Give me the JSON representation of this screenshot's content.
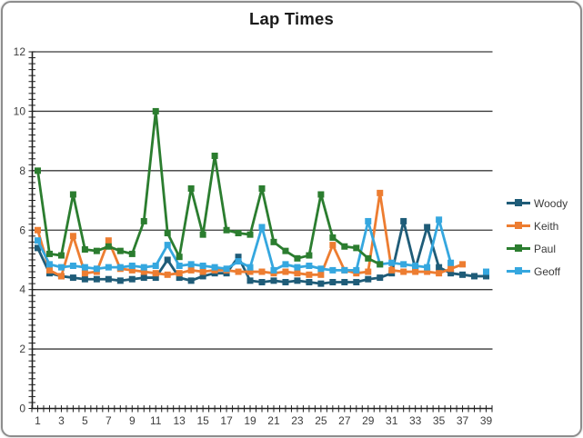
{
  "chart_data": {
    "type": "line",
    "title": "Lap Times",
    "xlabel": "",
    "ylabel": "",
    "xlim": [
      0.5,
      39.5
    ],
    "ylim": [
      0,
      12
    ],
    "y_ticks": [
      0,
      2,
      4,
      6,
      8,
      10,
      12
    ],
    "x_tick_labels": [
      "1",
      "3",
      "5",
      "7",
      "9",
      "11",
      "13",
      "15",
      "17",
      "19",
      "21",
      "23",
      "25",
      "27",
      "29",
      "31",
      "33",
      "35",
      "37",
      "39"
    ],
    "x_tick_label_positions": [
      1,
      3,
      5,
      7,
      9,
      11,
      13,
      15,
      17,
      19,
      21,
      23,
      25,
      27,
      29,
      31,
      33,
      35,
      37,
      39
    ],
    "grid": "horizontal",
    "legend_position": "right",
    "marker": "square",
    "axis_color": "#1f1f1f",
    "grid_color": "#3a3a3a",
    "tick_label_color": "#3d3d3d",
    "x": [
      1,
      2,
      3,
      4,
      5,
      6,
      7,
      8,
      9,
      10,
      11,
      12,
      13,
      14,
      15,
      16,
      17,
      18,
      19,
      20,
      21,
      22,
      23,
      24,
      25,
      26,
      27,
      28,
      29,
      30,
      31,
      32,
      33,
      34,
      35,
      36,
      37,
      38,
      39
    ],
    "series": [
      {
        "name": "Woody",
        "color": "#1F5C78",
        "values": [
          5.4,
          4.55,
          4.45,
          4.4,
          4.35,
          4.35,
          4.35,
          4.3,
          4.35,
          4.4,
          4.4,
          5.0,
          4.4,
          4.3,
          4.45,
          4.55,
          4.55,
          5.1,
          4.3,
          4.25,
          4.3,
          4.25,
          4.3,
          4.25,
          4.2,
          4.25,
          4.25,
          4.25,
          4.35,
          4.4,
          4.55,
          6.3,
          4.7,
          6.1,
          4.75,
          4.55,
          4.5,
          4.45,
          4.45
        ]
      },
      {
        "name": "Keith",
        "color": "#ED7D31",
        "values": [
          6.0,
          4.65,
          4.45,
          5.8,
          4.55,
          4.6,
          5.65,
          4.7,
          4.65,
          4.6,
          4.55,
          4.5,
          4.55,
          4.65,
          4.6,
          4.65,
          4.65,
          4.6,
          4.6,
          4.6,
          4.55,
          4.6,
          4.55,
          4.5,
          4.5,
          5.5,
          4.65,
          4.55,
          4.6,
          7.25,
          4.65,
          4.6,
          4.6,
          4.6,
          4.55,
          4.7,
          4.85,
          null,
          null
        ]
      },
      {
        "name": "Paul",
        "color": "#2B7D2F",
        "values": [
          8.0,
          5.2,
          5.15,
          7.2,
          5.35,
          5.3,
          5.45,
          5.3,
          5.2,
          6.3,
          10.0,
          5.9,
          5.1,
          7.4,
          5.85,
          8.5,
          6.0,
          5.9,
          5.85,
          7.4,
          5.6,
          5.3,
          5.05,
          5.15,
          7.2,
          5.75,
          5.45,
          5.4,
          5.05,
          4.85,
          null,
          null,
          null,
          null,
          null,
          null,
          null,
          null,
          null
        ]
      },
      {
        "name": "Geoff",
        "color": "#35A7DF",
        "values": [
          5.65,
          4.85,
          4.75,
          4.8,
          4.75,
          4.7,
          4.75,
          4.75,
          4.8,
          4.75,
          4.8,
          5.5,
          4.8,
          4.85,
          4.8,
          4.75,
          4.7,
          4.95,
          4.75,
          6.1,
          4.65,
          4.85,
          4.75,
          4.8,
          4.7,
          4.65,
          4.65,
          4.65,
          6.3,
          4.85,
          4.9,
          4.85,
          4.8,
          4.75,
          6.35,
          4.9,
          null,
          null,
          4.6
        ]
      }
    ],
    "draw_order_indices": [
      0,
      1,
      3,
      2
    ]
  }
}
